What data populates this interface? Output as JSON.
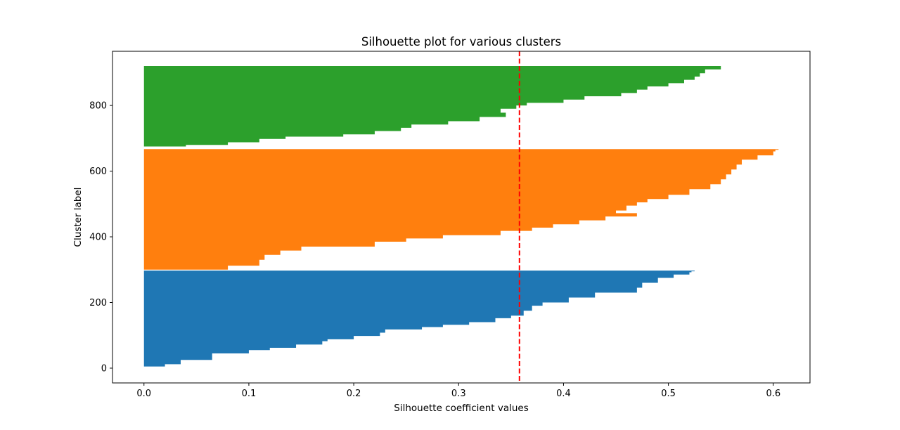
{
  "chart_data": {
    "type": "area",
    "orientation": "horizontal",
    "title": "Silhouette plot for various clusters",
    "xlabel": "Silhouette coefficient values",
    "ylabel": "Cluster label",
    "xlim": [
      -0.03,
      0.635
    ],
    "ylim": [
      -45,
      965
    ],
    "xticks": [
      "0.0",
      "0.1",
      "0.2",
      "0.3",
      "0.4",
      "0.5",
      "0.6"
    ],
    "yticks": [
      "0",
      "200",
      "400",
      "600",
      "800"
    ],
    "average_line": {
      "x": 0.358,
      "color": "#ff0000",
      "style": "dashed"
    },
    "grid": false,
    "series": [
      {
        "color": "#1f77b4",
        "y_start": 0,
        "points": [
          [
            0,
            0.0
          ],
          [
            5,
            0.02
          ],
          [
            12,
            0.035
          ],
          [
            25,
            0.065
          ],
          [
            45,
            0.1
          ],
          [
            55,
            0.12
          ],
          [
            62,
            0.145
          ],
          [
            72,
            0.17
          ],
          [
            82,
            0.175
          ],
          [
            88,
            0.2
          ],
          [
            98,
            0.225
          ],
          [
            108,
            0.23
          ],
          [
            118,
            0.265
          ],
          [
            125,
            0.285
          ],
          [
            132,
            0.31
          ],
          [
            140,
            0.335
          ],
          [
            152,
            0.35
          ],
          [
            160,
            0.362
          ],
          [
            175,
            0.37
          ],
          [
            190,
            0.38
          ],
          [
            200,
            0.405
          ],
          [
            215,
            0.43
          ],
          [
            230,
            0.47
          ],
          [
            245,
            0.475
          ],
          [
            260,
            0.49
          ],
          [
            275,
            0.505
          ],
          [
            285,
            0.52
          ],
          [
            292,
            0.522
          ],
          [
            295,
            0.525
          ]
        ]
      },
      {
        "color": "#ff7f0e",
        "y_start": 300,
        "points": [
          [
            300,
            0.08
          ],
          [
            312,
            0.11
          ],
          [
            330,
            0.115
          ],
          [
            345,
            0.13
          ],
          [
            358,
            0.15
          ],
          [
            370,
            0.22
          ],
          [
            385,
            0.25
          ],
          [
            395,
            0.285
          ],
          [
            405,
            0.34
          ],
          [
            418,
            0.37
          ],
          [
            428,
            0.39
          ],
          [
            438,
            0.415
          ],
          [
            450,
            0.44
          ],
          [
            462,
            0.47
          ],
          [
            472,
            0.45
          ],
          [
            480,
            0.46
          ],
          [
            495,
            0.47
          ],
          [
            505,
            0.48
          ],
          [
            515,
            0.5
          ],
          [
            528,
            0.52
          ],
          [
            545,
            0.54
          ],
          [
            560,
            0.55
          ],
          [
            575,
            0.555
          ],
          [
            590,
            0.56
          ],
          [
            605,
            0.565
          ],
          [
            620,
            0.57
          ],
          [
            635,
            0.585
          ],
          [
            648,
            0.6
          ],
          [
            660,
            0.602
          ],
          [
            665,
            0.605
          ]
        ]
      },
      {
        "color": "#2ca02c",
        "y_start": 670,
        "points": [
          [
            670,
            0.0
          ],
          [
            675,
            0.04
          ],
          [
            680,
            0.08
          ],
          [
            688,
            0.11
          ],
          [
            698,
            0.135
          ],
          [
            705,
            0.19
          ],
          [
            712,
            0.22
          ],
          [
            722,
            0.245
          ],
          [
            732,
            0.255
          ],
          [
            742,
            0.29
          ],
          [
            752,
            0.32
          ],
          [
            765,
            0.345
          ],
          [
            778,
            0.34
          ],
          [
            790,
            0.355
          ],
          [
            800,
            0.365
          ],
          [
            808,
            0.4
          ],
          [
            818,
            0.42
          ],
          [
            828,
            0.455
          ],
          [
            838,
            0.47
          ],
          [
            848,
            0.48
          ],
          [
            858,
            0.5
          ],
          [
            868,
            0.515
          ],
          [
            878,
            0.525
          ],
          [
            888,
            0.53
          ],
          [
            898,
            0.535
          ],
          [
            910,
            0.55
          ],
          [
            918,
            0.55
          ]
        ]
      }
    ]
  }
}
